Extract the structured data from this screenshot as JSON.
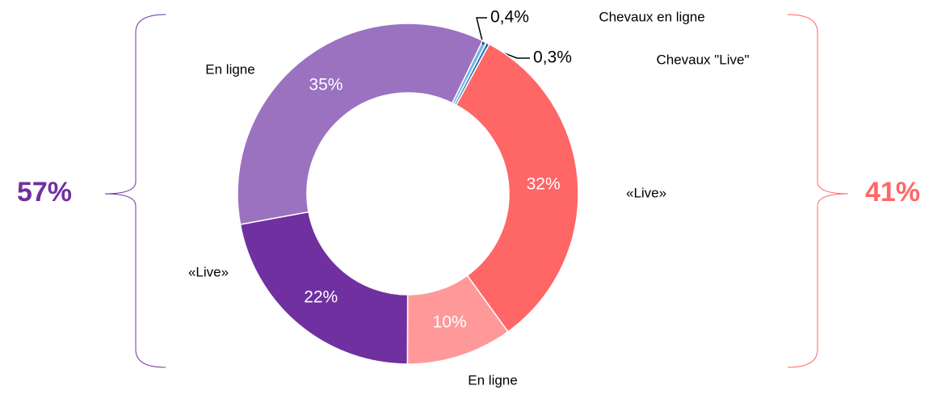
{
  "chart_data": {
    "type": "donut",
    "categories": [
      "Chevaux en ligne",
      "Chevaux \"Live\"",
      "«Live»",
      "En ligne",
      "«Live»",
      "En ligne"
    ],
    "values": [
      0.4,
      0.3,
      32,
      10,
      22,
      35
    ],
    "value_labels": [
      "0,4%",
      "0,3%",
      "32%",
      "10%",
      "22%",
      "35%"
    ],
    "colors": [
      "#6fb7e6",
      "#2e75b6",
      "#ff6666",
      "#ff9999",
      "#7030a0",
      "#9b72c0"
    ],
    "groups": [
      {
        "value": 57,
        "label": "57%",
        "color": "#7030a0"
      },
      {
        "value": 41,
        "label": "41%",
        "color": "#ff6666"
      }
    ]
  }
}
